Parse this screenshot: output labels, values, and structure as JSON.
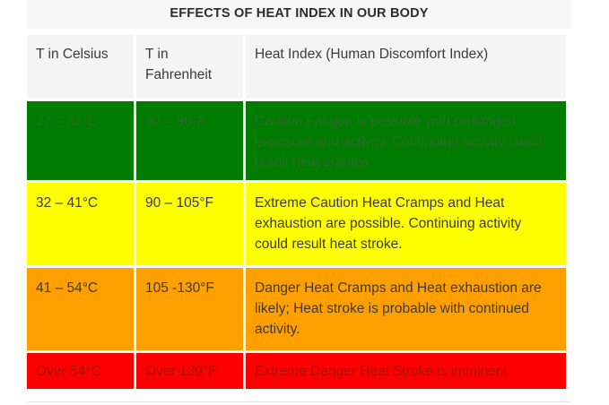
{
  "title": "EFFECTS OF HEAT INDEX IN OUR BODY",
  "headers": [
    "T in Celsius",
    "T in Fahrenheit",
    "Heat Index (Human Discomfort Index)"
  ],
  "rows": [
    {
      "celsius": "27 – 32°C",
      "fahrenheit": "80 – 90°F",
      "description": "Caution Fatigue is possible with prolonged exposure and activity. Continuing activity could result heat cramps.",
      "color": "#007c00"
    },
    {
      "celsius": "32 – 41°C",
      "fahrenheit": "90 – 105°F",
      "description": "Extreme Caution Heat Cramps and Heat exhaustion are possible. Continuing activity could result heat stroke.",
      "color": "#ffff00"
    },
    {
      "celsius": "41 – 54°C",
      "fahrenheit": "105 -130°F",
      "description": "Danger Heat Cramps and Heat exhaustion are likely; Heat stroke is probable with continued activity.",
      "color": "#ff9f00"
    },
    {
      "celsius": "Over 54°C",
      "fahrenheit": "Over 130°F",
      "description": "Extreme Danger Heat Stroke is imminent.",
      "color": "#ff0000"
    }
  ]
}
